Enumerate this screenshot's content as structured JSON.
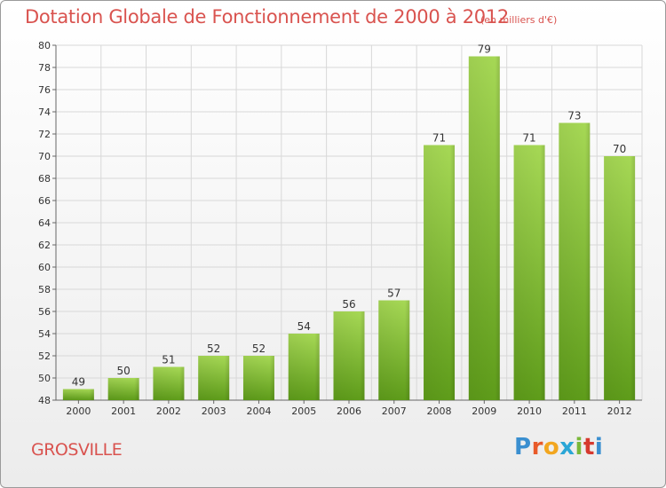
{
  "title": "Dotation Globale de Fonctionnement de 2000 à 2012",
  "unit_note": "(en milliers d'€)",
  "commune": "GROSVILLE",
  "logo": {
    "text": "Proxiti",
    "colors": [
      "#3a8fd0",
      "#e85a2a",
      "#f2a61f",
      "#2aa6d6",
      "#7ab83a",
      "#d6392e"
    ]
  },
  "colors": {
    "title": "#d9534f",
    "bar_top": "#a6d855",
    "bar_bottom": "#5e9c1a",
    "grid": "#d8d8d8"
  },
  "chart_data": {
    "type": "bar",
    "title": "Dotation Globale de Fonctionnement de 2000 à 2012",
    "xlabel": "",
    "ylabel": "",
    "categories": [
      "2000",
      "2001",
      "2002",
      "2003",
      "2004",
      "2005",
      "2006",
      "2007",
      "2008",
      "2009",
      "2010",
      "2011",
      "2012"
    ],
    "values": [
      49,
      50,
      51,
      52,
      52,
      54,
      56,
      57,
      71,
      79,
      71,
      73,
      70
    ],
    "ylim": [
      48,
      80
    ],
    "yticks": [
      48,
      50,
      52,
      54,
      56,
      58,
      60,
      62,
      64,
      66,
      68,
      70,
      72,
      74,
      76,
      78,
      80
    ],
    "grid": true
  }
}
